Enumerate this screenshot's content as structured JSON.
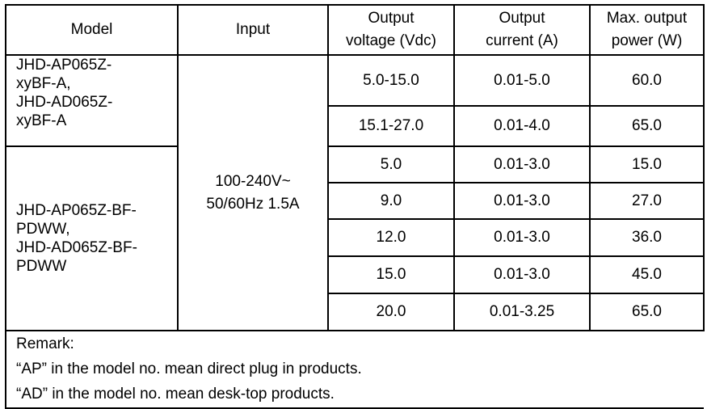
{
  "headers": [
    "Model",
    "Input",
    "Output voltage (Vdc)",
    "Output current (A)",
    "Max. output power (W)"
  ],
  "header_lines": {
    "voltage": [
      "Output",
      "voltage (Vdc)"
    ],
    "current": [
      "Output",
      "current (A)"
    ],
    "power": [
      "Max. output",
      "power (W)"
    ]
  },
  "groups": [
    {
      "model_lines": [
        "JHD-AP065Z-",
        "xyBF-A,",
        "JHD-AD065Z-",
        "xyBF-A"
      ],
      "rows": [
        [
          "5.0-15.0",
          "0.01-5.0",
          "60.0"
        ],
        [
          "15.1-27.0",
          "0.01-4.0",
          "65.0"
        ]
      ]
    },
    {
      "model_lines": [
        "JHD-AP065Z-BF-",
        "PDWW,",
        "JHD-AD065Z-BF-",
        "PDWW"
      ],
      "rows": [
        [
          "5.0",
          "0.01-3.0",
          "15.0"
        ],
        [
          "9.0",
          "0.01-3.0",
          "27.0"
        ],
        [
          "12.0",
          "0.01-3.0",
          "36.0"
        ],
        [
          "15.0",
          "0.01-3.0",
          "45.0"
        ],
        [
          "20.0",
          "0.01-3.25",
          "65.0"
        ]
      ]
    }
  ],
  "input_lines": [
    "100-240V~",
    "50/60Hz 1.5A"
  ],
  "remark": [
    "Remark:",
    "“AP” in the model no. mean direct plug in products.",
    "“AD” in the model no. mean desk-top products."
  ]
}
